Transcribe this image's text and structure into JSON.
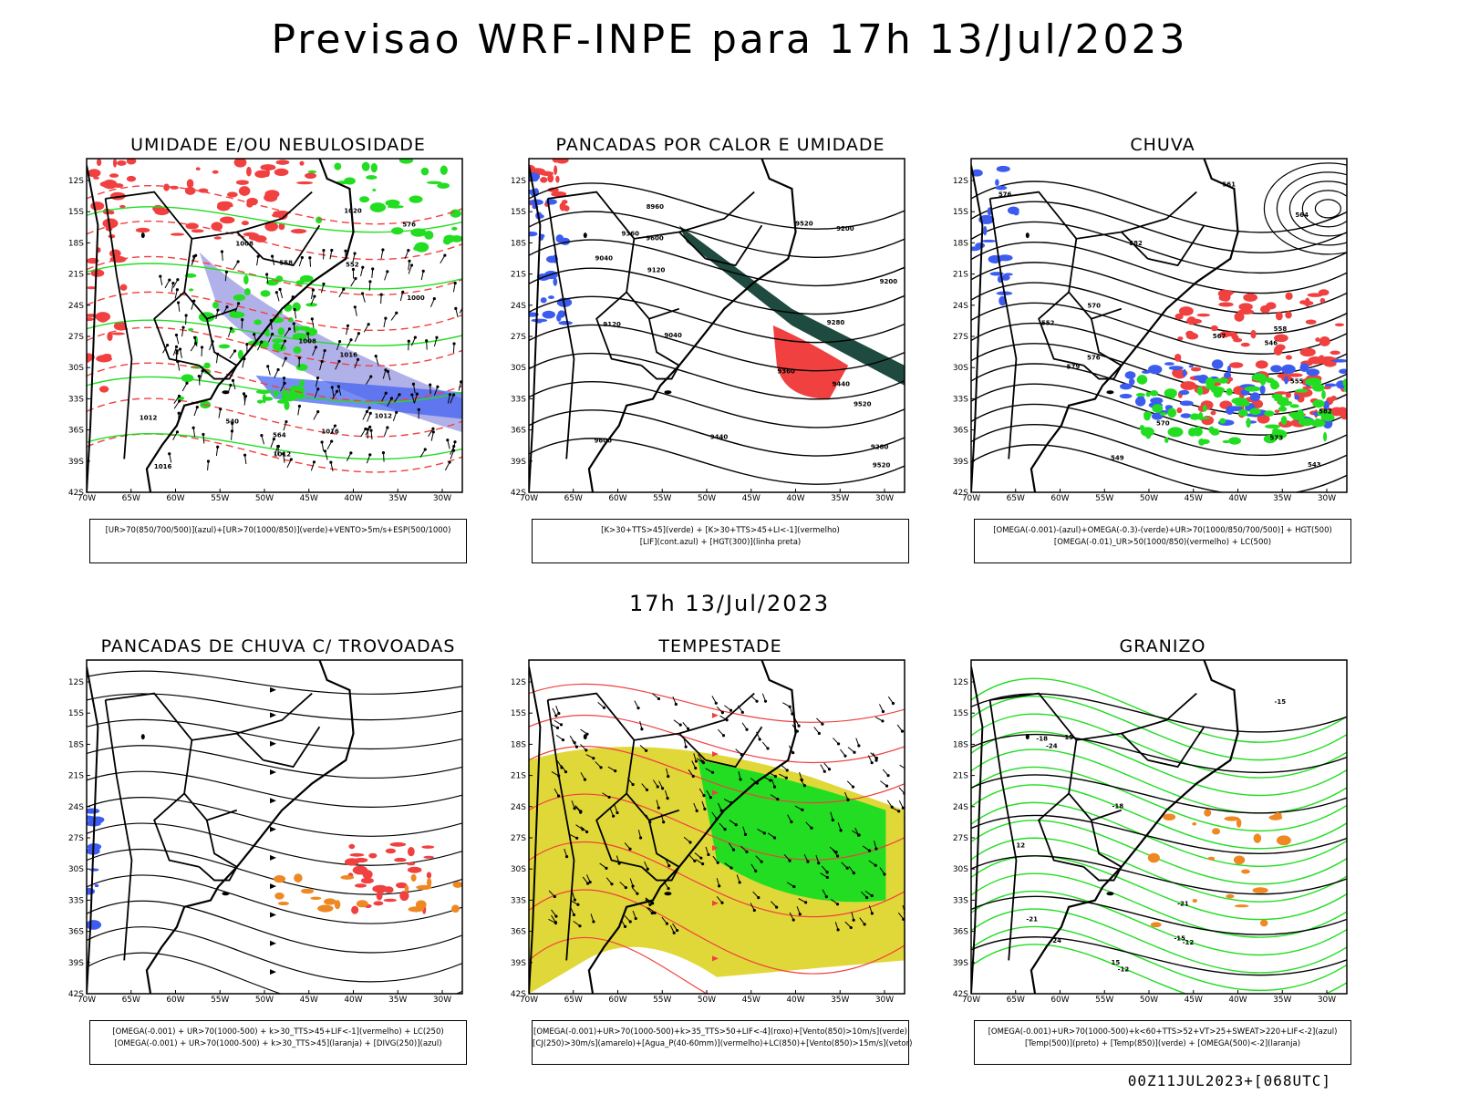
{
  "main_title": "Previsao WRF-INPE  para 17h 13/Jul/2023",
  "mid_title": "17h 13/Jul/2023",
  "footer": "00Z11JUL2023+[068UTC]",
  "axes": {
    "lat_labels": [
      "12S",
      "15S",
      "18S",
      "21S",
      "24S",
      "27S",
      "30S",
      "33S",
      "36S",
      "39S",
      "42S"
    ],
    "lon_labels": [
      "70W",
      "65W",
      "60W",
      "55W",
      "50W",
      "45W",
      "40W",
      "35W",
      "30W"
    ]
  },
  "colors": {
    "blue": "#3c5cf0",
    "green": "#22dd22",
    "red": "#f04040",
    "orange": "#ee8822",
    "yellow": "#e0d838",
    "lavender": "#a8a8e8",
    "darkgreen": "#1e4a40"
  },
  "panels": [
    {
      "title": "UMIDADE E/OU NEBULOSIDADE",
      "legend": [
        "[UR>70(850/700/500)](azul)+[UR>70(1000/850)](verde)+VENTO>5m/s+ESP(500/1000)"
      ],
      "contour_labels": [
        "1012",
        "1016",
        "1016",
        "1012",
        "1008",
        "1008",
        "1020",
        "1000",
        "1012",
        "1016",
        "576",
        "564",
        "552",
        "540",
        "558"
      ]
    },
    {
      "title": "PANCADAS POR CALOR E UMIDADE",
      "legend": [
        "[K>30+TTS>45](verde) + [K>30+TTS>45+LI<-1](vermelho)",
        "[LIF](cont.azul) + [HGT(300)](linha preta)"
      ],
      "contour_labels": [
        "9520",
        "9600",
        "9520",
        "9440",
        "9360",
        "9280",
        "9200",
        "9120",
        "9040",
        "8960",
        "9600",
        "9520",
        "9440",
        "9360",
        "9280",
        "9200",
        "9120",
        "9040"
      ]
    },
    {
      "title": "CHUVA",
      "legend": [
        "[OMEGA(-0.001)-(azul)+OMEGA(-0.3)-(verde)+UR>70(1000/850/700/500)] + HGT(500)",
        "[OMEGA(-0.01)_UR>50(1000/850)(vermelho) + LC(500)"
      ],
      "contour_labels": [
        "582",
        "579",
        "576",
        "573",
        "570",
        "567",
        "564",
        "561",
        "558",
        "555",
        "552",
        "549",
        "546",
        "543",
        "582",
        "576",
        "570"
      ]
    },
    {
      "title": "PANCADAS DE CHUVA C/ TROVOADAS",
      "legend": [
        "[OMEGA(-0.001) + UR>70(1000-500) + k>30_TTS>45+LIF<-1](vermelho) + LC(250)",
        "[OMEGA(-0.001) + UR>70(1000-500) + k>30_TTS>45](laranja) + [DIVG(250)](azul)"
      ],
      "contour_labels": []
    },
    {
      "title": "TEMPESTADE",
      "legend": [
        "[OMEGA(-0.001)+UR>70(1000-500)+k>35_TTS>50+LIF<-4](roxo)+[Vento(850)>10m/s](verde)",
        "[CJ(250)>30m/s](amarelo)+[Agua_P(40-60mm)](vermelho)+LC(850)+[Vento(850)>15m/s](vetor)"
      ],
      "contour_labels": []
    },
    {
      "title": "GRANIZO",
      "legend": [
        "[OMEGA(-0.001)+UR>70(1000-500)+k<60+TTS>52+VT>25+SWEAT>220+LIF<-2](azul)",
        "[Temp(500)](preto) + [Temp(850)](verde) + [OMEGA(500)<-2](laranja)"
      ],
      "contour_labels": [
        "-12",
        "-15",
        "-18",
        "-21",
        "-24",
        "-15",
        "-12",
        "-18",
        "-21",
        "-24",
        "15",
        "12",
        "15"
      ]
    }
  ]
}
